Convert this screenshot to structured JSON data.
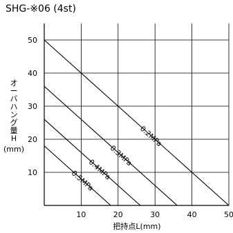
{
  "chart_data": {
    "type": "line",
    "title": "SHG-※06 (4st)",
    "xlabel": "把持点L(mm)",
    "ylabel_chars": [
      "オ",
      "ー",
      "バ",
      "ハ",
      "ン",
      "グ",
      "量",
      "H"
    ],
    "ylabel_unit": "(mm)",
    "xlim": [
      0,
      50
    ],
    "ylim": [
      0,
      55
    ],
    "x_ticks": [
      10,
      20,
      30,
      40,
      50
    ],
    "y_ticks": [
      10,
      20,
      30,
      40,
      50
    ],
    "grid": true,
    "series": [
      {
        "name": "0.2MPa",
        "x": [
          0,
          50
        ],
        "y": [
          50,
          0
        ]
      },
      {
        "name": "0.3MPa",
        "x": [
          0,
          36
        ],
        "y": [
          36,
          0
        ]
      },
      {
        "name": "0.4MPa",
        "x": [
          0,
          26
        ],
        "y": [
          26,
          0
        ]
      },
      {
        "name": "0.5MPa",
        "x": [
          0,
          18
        ],
        "y": [
          18,
          0
        ]
      }
    ]
  }
}
